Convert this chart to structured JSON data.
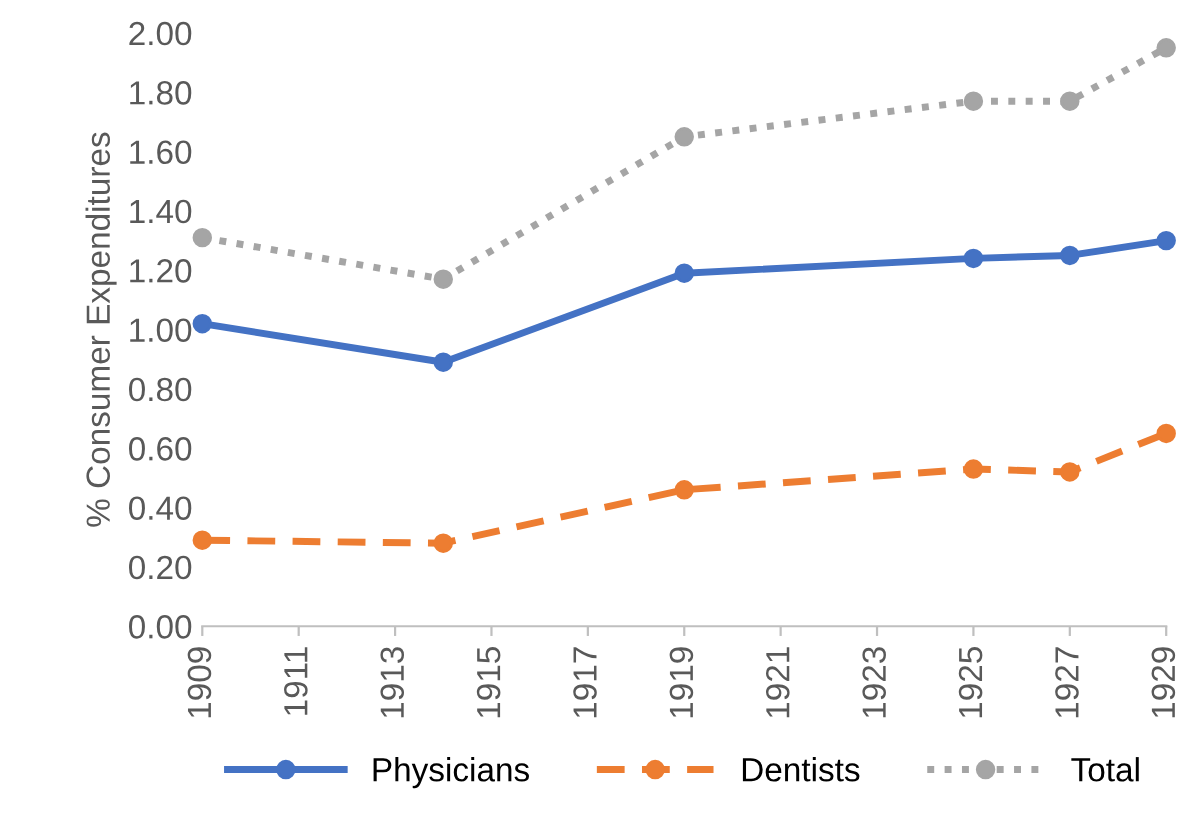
{
  "chart_data": {
    "type": "line",
    "ylabel": "% Consumer Expenditures",
    "x": [
      1909,
      1914,
      1919,
      1925,
      1927,
      1929
    ],
    "series": [
      {
        "name": "Physicians",
        "color": "#4472c4",
        "line_style": "solid",
        "values": [
          1.02,
          0.89,
          1.19,
          1.24,
          1.25,
          1.3
        ]
      },
      {
        "name": "Dentists",
        "color": "#ed7d31",
        "line_style": "dashed",
        "values": [
          0.29,
          0.28,
          0.46,
          0.53,
          0.52,
          0.65
        ]
      },
      {
        "name": "Total",
        "color": "#a5a5a5",
        "line_style": "dotted",
        "values": [
          1.31,
          1.17,
          1.65,
          1.77,
          1.77,
          1.95
        ]
      }
    ],
    "xlim": [
      1909,
      1929
    ],
    "xticks": [
      1909,
      1911,
      1913,
      1915,
      1917,
      1919,
      1921,
      1923,
      1925,
      1927,
      1929
    ],
    "ylim": [
      0,
      2
    ],
    "yticks": [
      {
        "value": 0,
        "label": "0.00"
      },
      {
        "value": 0.2,
        "label": "0.20"
      },
      {
        "value": 0.4,
        "label": "0.40"
      },
      {
        "value": 0.6,
        "label": "0.60"
      },
      {
        "value": 0.8,
        "label": "0.80"
      },
      {
        "value": 1,
        "label": "1.00"
      },
      {
        "value": 1.2,
        "label": "1.20"
      },
      {
        "value": 1.4,
        "label": "1.40"
      },
      {
        "value": 1.6,
        "label": "1.60"
      },
      {
        "value": 1.8,
        "label": "1.80"
      },
      {
        "value": 2,
        "label": "2.00"
      }
    ],
    "marker": "circle",
    "legend": "bottom",
    "grid": false
  }
}
